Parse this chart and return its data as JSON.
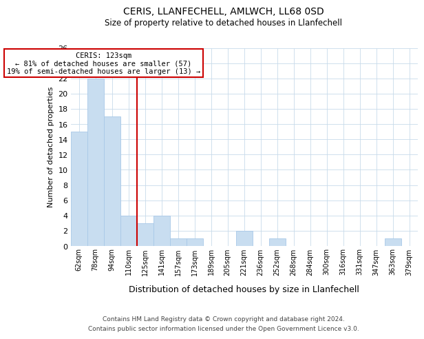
{
  "title": "CERIS, LLANFECHELL, AMLWCH, LL68 0SD",
  "subtitle": "Size of property relative to detached houses in Llanfechell",
  "xlabel": "Distribution of detached houses by size in Llanfechell",
  "ylabel": "Number of detached properties",
  "bar_color": "#c8ddf0",
  "bar_edge_color": "#a8c8e8",
  "categories": [
    "62sqm",
    "78sqm",
    "94sqm",
    "110sqm",
    "125sqm",
    "141sqm",
    "157sqm",
    "173sqm",
    "189sqm",
    "205sqm",
    "221sqm",
    "236sqm",
    "252sqm",
    "268sqm",
    "284sqm",
    "300sqm",
    "316sqm",
    "331sqm",
    "347sqm",
    "363sqm",
    "379sqm"
  ],
  "values": [
    15,
    22,
    17,
    4,
    3,
    4,
    1,
    1,
    0,
    0,
    2,
    0,
    1,
    0,
    0,
    0,
    0,
    0,
    0,
    1,
    0
  ],
  "ylim": [
    0,
    26
  ],
  "yticks": [
    0,
    2,
    4,
    6,
    8,
    10,
    12,
    14,
    16,
    18,
    20,
    22,
    24,
    26
  ],
  "vline_x_bar_index": 4,
  "vline_color": "#cc0000",
  "annotation_line1": "CERIS: 123sqm",
  "annotation_line2": "← 81% of detached houses are smaller (57)",
  "annotation_line3": "19% of semi-detached houses are larger (13) →",
  "annotation_box_color": "#ffffff",
  "annotation_box_edge": "#cc0000",
  "footer_line1": "Contains HM Land Registry data © Crown copyright and database right 2024.",
  "footer_line2": "Contains public sector information licensed under the Open Government Licence v3.0.",
  "background_color": "#ffffff",
  "grid_color": "#c8daea"
}
